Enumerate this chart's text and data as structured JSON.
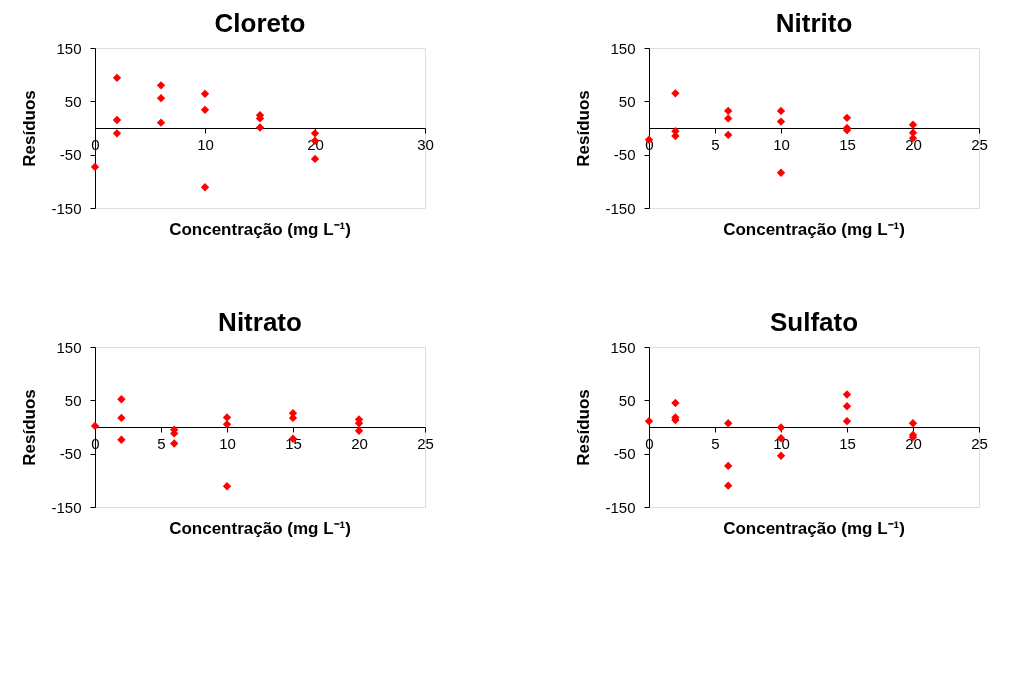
{
  "chart_data": [
    {
      "type": "scatter",
      "title": "Cloreto",
      "xlabel": "Concentração (mg L⁻¹)",
      "ylabel": "Resíduos",
      "marker": "diamond",
      "grid": false,
      "xlim": [
        0,
        30
      ],
      "xticks": [
        0,
        10,
        20,
        30
      ],
      "ylim": [
        -150,
        150
      ],
      "yticks": [
        -150,
        -50,
        50,
        150
      ],
      "series": [
        {
          "color": "#ff0000",
          "x": [
            0,
            2,
            2,
            2,
            6,
            6,
            6,
            10,
            10,
            10,
            15,
            15,
            15,
            20,
            20,
            20
          ],
          "values": [
            -73,
            94,
            15,
            -10,
            80,
            56,
            10,
            64,
            34,
            -111,
            24,
            18,
            1,
            -10,
            -24,
            -58
          ]
        }
      ]
    },
    {
      "type": "scatter",
      "title": "Nitrito",
      "xlabel": "Concentração (mg L⁻¹)",
      "ylabel": "Resíduos",
      "marker": "diamond",
      "grid": false,
      "xlim": [
        0,
        25
      ],
      "xticks": [
        0,
        5,
        10,
        15,
        20,
        25
      ],
      "ylim": [
        -150,
        150
      ],
      "yticks": [
        -150,
        -50,
        50,
        150
      ],
      "series": [
        {
          "color": "#ff0000",
          "x": [
            0,
            2,
            2,
            2,
            6,
            6,
            6,
            10,
            10,
            10,
            15,
            15,
            15,
            20,
            20,
            20
          ],
          "values": [
            -22,
            65,
            -6,
            -15,
            32,
            18,
            -13,
            32,
            12,
            -84,
            19,
            0,
            -4,
            6,
            -9,
            -19
          ]
        }
      ]
    },
    {
      "type": "scatter",
      "title": "Nitrato",
      "xlabel": "Concentração (mg L⁻¹)",
      "ylabel": "Resíduos",
      "marker": "diamond",
      "grid": false,
      "xlim": [
        0,
        25
      ],
      "xticks": [
        0,
        5,
        10,
        15,
        20,
        25
      ],
      "ylim": [
        -150,
        150
      ],
      "yticks": [
        -150,
        -50,
        50,
        150
      ],
      "series": [
        {
          "color": "#ff0000",
          "x": [
            0,
            2,
            2,
            2,
            6,
            6,
            6,
            10,
            10,
            10,
            15,
            15,
            15,
            20,
            20,
            20
          ],
          "values": [
            2,
            52,
            17,
            -24,
            -5,
            -12,
            -31,
            18,
            5,
            -111,
            26,
            17,
            -22,
            14,
            7,
            -7
          ]
        }
      ]
    },
    {
      "type": "scatter",
      "title": "Sulfato",
      "xlabel": "Concentração (mg L⁻¹)",
      "ylabel": "Resíduos",
      "marker": "diamond",
      "grid": false,
      "xlim": [
        0,
        25
      ],
      "xticks": [
        0,
        5,
        10,
        15,
        20,
        25
      ],
      "ylim": [
        -150,
        150
      ],
      "yticks": [
        -150,
        -50,
        50,
        150
      ],
      "series": [
        {
          "color": "#ff0000",
          "x": [
            0,
            2,
            2,
            2,
            6,
            6,
            6,
            10,
            10,
            10,
            15,
            15,
            15,
            20,
            20,
            20
          ],
          "values": [
            11,
            45,
            18,
            13,
            7,
            -73,
            -110,
            -1,
            -21,
            -54,
            61,
            39,
            11,
            7,
            -15,
            -19
          ]
        }
      ]
    }
  ]
}
